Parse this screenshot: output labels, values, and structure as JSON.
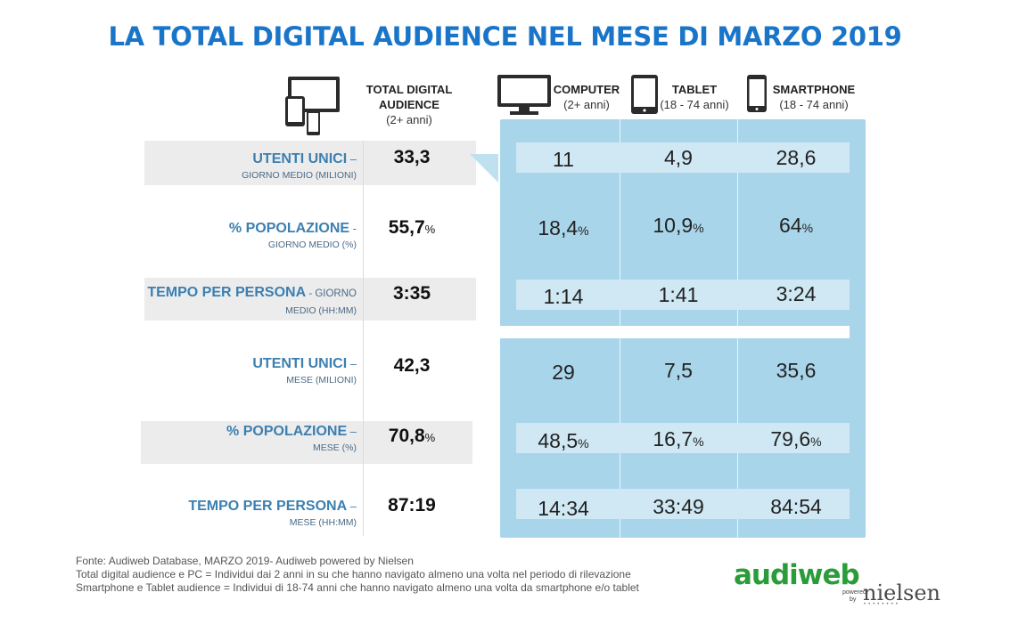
{
  "title": "LA TOTAL DIGITAL AUDIENCE NEL MESE DI MARZO 2019",
  "header": {
    "total": {
      "line1": "TOTAL DIGITAL",
      "line2": "AUDIENCE",
      "sub": "(2+ anni)"
    },
    "computer": {
      "label": "COMPUTER",
      "sub": "(2+ anni)"
    },
    "tablet": {
      "label": "TABLET",
      "sub": "(18 - 74 anni)"
    },
    "smartphone": {
      "label": "SMARTPHONE",
      "sub": "(18 - 74 anni)"
    }
  },
  "pct_sign": "%",
  "rows": [
    {
      "label": "UTENTI UNICI",
      "dash": " –",
      "sub": "GIORNO MEDIO (MILIONI)",
      "total": "33,3",
      "computer": "11",
      "tablet": "4,9",
      "smartphone": "28,6"
    },
    {
      "label": "% POPOLAZIONE",
      "dash": " -",
      "sub": "GIORNO MEDIO (%)",
      "total": "55,7",
      "computer": "18,4",
      "tablet": "10,9",
      "smartphone": "64"
    },
    {
      "label": "TEMPO PER PERSONA",
      "dash": " - GIORNO",
      "sub": "MEDIO (HH:MM)",
      "total": "3:35",
      "computer": "1:14",
      "tablet": "1:41",
      "smartphone": "3:24"
    },
    {
      "label": "UTENTI UNICI",
      "dash": " –",
      "sub": "MESE (MILIONI)",
      "total": "42,3",
      "computer": "29",
      "tablet": "7,5",
      "smartphone": "35,6"
    },
    {
      "label": "% POPOLAZIONE",
      "dash": " –",
      "sub": "MESE (%)",
      "total": "70,8",
      "computer": "48,5",
      "tablet": "16,7",
      "smartphone": "79,6"
    },
    {
      "label": "TEMPO PER PERSONA",
      "dash": " –",
      "sub": "MESE (HH:MM)",
      "total": "87:19",
      "computer": "14:34",
      "tablet": "33:49",
      "smartphone": "84:54"
    }
  ],
  "footer": {
    "line1": "Fonte: Audiweb Database, MARZO 2019- Audiweb powered by Nielsen",
    "line2": "Total digital audience e PC = Individui dai 2 anni in su che hanno navigato almeno una volta nel periodo di rilevazione",
    "line3": "Smartphone e Tablet audience = Individui di 18-74 anni che hanno navigato almeno una volta da smartphone e/o tablet"
  },
  "logo": {
    "main": "audiweb",
    "powered": "powered",
    "by": "by",
    "nielsen": "nielsen"
  },
  "colors": {
    "title": "#1a75c9",
    "panel": "#a9d5ea",
    "band": "#cfe8f4",
    "label": "#3c7fb0"
  }
}
